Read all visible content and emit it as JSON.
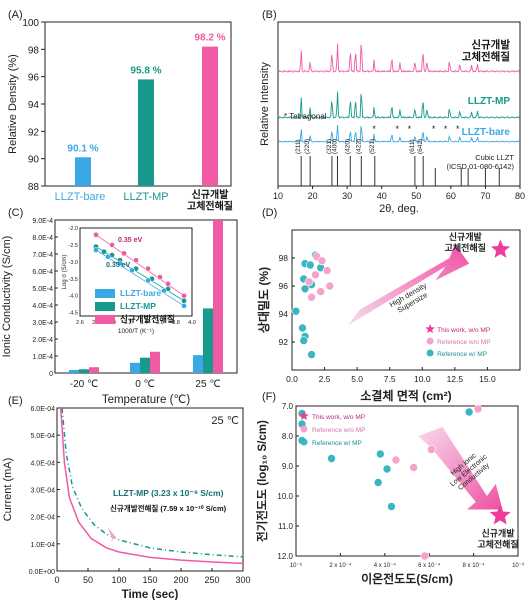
{
  "colors": {
    "bare": "#3aa8e4",
    "mp": "#17998c",
    "new": "#ef5aa5",
    "new_light": "#f4a3cc",
    "pink": "#ec3d9a",
    "axis": "#222222"
  },
  "chart_data": [
    {
      "panel": "(A)",
      "type": "bar",
      "categories": [
        "LLZT-bare",
        "LLZT-MP",
        "신규개발\n고체전해질"
      ],
      "values": [
        90.1,
        95.8,
        98.2
      ],
      "data_labels": [
        "90.1 %",
        "95.8 %",
        "98.2 %"
      ],
      "ylabel": "Relative Density (%)",
      "ylim": [
        88,
        100
      ],
      "yticks": [
        88,
        90,
        92,
        94,
        96,
        98,
        100
      ]
    },
    {
      "panel": "(B)",
      "type": "line",
      "xlabel": "2θ, deg.",
      "ylabel": "Relative Intensity",
      "xlim": [
        10,
        80
      ],
      "xticks": [
        10,
        20,
        30,
        40,
        50,
        60,
        70,
        80
      ],
      "series": [
        {
          "name": "신규개발\n고체전해질",
          "peaks": [
            [
              16.7,
              0.55
            ],
            [
              19.3,
              0.25
            ],
            [
              25.6,
              0.55
            ],
            [
              27.2,
              0.75
            ],
            [
              30.9,
              0.6
            ],
            [
              32.4,
              0.6
            ],
            [
              34.1,
              0.9
            ],
            [
              37.8,
              0.3
            ],
            [
              42.9,
              0.4
            ],
            [
              45.3,
              0.25
            ],
            [
              49.6,
              0.3
            ],
            [
              51.9,
              0.6
            ],
            [
              53.1,
              0.3
            ],
            [
              59.6,
              0.3
            ],
            [
              62.6,
              0.2
            ],
            [
              66.0,
              0.15
            ],
            [
              67.7,
              0.2
            ]
          ]
        },
        {
          "name": "LLZT-MP",
          "peaks": [
            [
              16.7,
              0.6
            ],
            [
              19.3,
              0.3
            ],
            [
              25.6,
              0.6
            ],
            [
              27.2,
              0.8
            ],
            [
              30.9,
              0.6
            ],
            [
              32.4,
              0.6
            ],
            [
              34.1,
              0.9
            ],
            [
              37.8,
              0.3
            ],
            [
              42.9,
              0.4
            ],
            [
              45.3,
              0.25
            ],
            [
              49.6,
              0.3
            ],
            [
              51.9,
              0.6
            ],
            [
              53.1,
              0.3
            ],
            [
              59.6,
              0.3
            ],
            [
              62.6,
              0.2
            ],
            [
              66.0,
              0.15
            ],
            [
              67.7,
              0.2
            ]
          ]
        },
        {
          "name": "LLZT-bare",
          "peaks": [
            [
              16.7,
              0.5
            ],
            [
              19.3,
              0.25
            ],
            [
              25.6,
              0.5
            ],
            [
              27.2,
              0.7
            ],
            [
              30.9,
              0.5
            ],
            [
              32.4,
              0.5
            ],
            [
              34.1,
              0.8
            ],
            [
              37.8,
              0.3
            ],
            [
              42.9,
              0.35
            ],
            [
              45.3,
              0.2
            ],
            [
              49.6,
              0.25
            ],
            [
              51.9,
              0.5
            ],
            [
              53.1,
              0.25
            ],
            [
              59.6,
              0.25
            ],
            [
              62.6,
              0.2
            ],
            [
              66.0,
              0.15
            ],
            [
              67.7,
              0.2
            ]
          ]
        }
      ],
      "reference": {
        "name": "Cubic LLZT\n(ICSD 01-080-6142)",
        "lines": [
          [
            16.7,
            "(211)"
          ],
          [
            19.3,
            "(220)"
          ],
          [
            25.6,
            "(321)"
          ],
          [
            27.2,
            "(400)"
          ],
          [
            30.9,
            "(420)"
          ],
          [
            34.1,
            "(422)"
          ],
          [
            38.0,
            "(521)"
          ],
          [
            49.6,
            "(611)"
          ],
          [
            52.0,
            "(642)"
          ],
          [
            55.5,
            ""
          ],
          [
            63.0,
            ""
          ],
          [
            65.0,
            ""
          ],
          [
            70.0,
            ""
          ],
          [
            74.0,
            ""
          ]
        ]
      },
      "annotation": "* Tetragonal"
    },
    {
      "panel": "(C)",
      "type": "bar",
      "categories": [
        "-20 ℃",
        "0 ℃",
        "25 ℃"
      ],
      "series": [
        {
          "name": "LLZT-bare",
          "values": [
            1.8e-05,
            6e-05,
            0.000105
          ]
        },
        {
          "name": "LLZT-MP",
          "values": [
            2.2e-05,
            9e-05,
            0.00038
          ]
        },
        {
          "name": "신규개발전해질",
          "values": [
            3.4e-05,
            0.000125,
            0.0009
          ]
        }
      ],
      "xlabel": "Temperature (℃)",
      "ylabel": "Ionic Conductivity (S/cm)",
      "ylim": [
        0,
        0.0009
      ],
      "yticks": [
        "0",
        "1.0E-4",
        "2.0E-4",
        "3.0E-4",
        "4.0E-4",
        "5.0E-4",
        "6.0E-4",
        "7.0E-4",
        "8.0E-4",
        "9.0E-4"
      ],
      "inset": {
        "type": "scatter",
        "xlabel": "1000/T (K⁻¹)",
        "ylabel": "Log σ (S/cm)",
        "xlim": [
          2.6,
          4.0
        ],
        "ylim": [
          -4.6,
          -2.0
        ],
        "xticks": [
          "2.6",
          "2.8",
          "3.0",
          "3.2",
          "3.4",
          "3.6",
          "3.8",
          "4.0"
        ],
        "yticks": [
          "-2.0",
          "-2.5",
          "-3.0",
          "-3.5",
          "-4.0",
          "-4.5"
        ],
        "annotations": [
          "0.35 eV",
          "0.35 eV"
        ],
        "series": [
          {
            "name": "신규개발전해질",
            "points": [
              [
                2.8,
                -2.2
              ],
              [
                3.0,
                -2.5
              ],
              [
                3.15,
                -2.75
              ],
              [
                3.3,
                -2.95
              ],
              [
                3.45,
                -3.2
              ],
              [
                3.6,
                -3.45
              ],
              [
                3.7,
                -3.65
              ],
              [
                3.9,
                -4.0
              ]
            ]
          },
          {
            "name": "LLZT-MP",
            "points": [
              [
                2.8,
                -2.55
              ],
              [
                2.9,
                -2.7
              ],
              [
                3.0,
                -2.8
              ],
              [
                3.1,
                -2.95
              ],
              [
                3.3,
                -3.2
              ],
              [
                3.5,
                -3.5
              ],
              [
                3.7,
                -3.8
              ],
              [
                3.9,
                -4.15
              ]
            ]
          },
          {
            "name": "LLZT-bare",
            "points": [
              [
                2.8,
                -2.65
              ],
              [
                2.95,
                -2.85
              ],
              [
                3.1,
                -3.05
              ],
              [
                3.25,
                -3.25
              ],
              [
                3.45,
                -3.55
              ],
              [
                3.65,
                -3.85
              ],
              [
                3.9,
                -4.3
              ]
            ]
          }
        ]
      }
    },
    {
      "panel": "(D)",
      "type": "scatter",
      "xlabel": "소결체 면적 (cm²)",
      "ylabel": "상대밀도 (%)",
      "xlim": [
        0,
        17.5
      ],
      "ylim": [
        90,
        100
      ],
      "xticks": [
        "0.0",
        "2.5",
        "5.0",
        "7.5",
        "10.0",
        "12.5",
        "15.0"
      ],
      "yticks": [
        "92",
        "94",
        "96",
        "98"
      ],
      "arrow_text": [
        "High density",
        "Supersize"
      ],
      "star_label": "신규개발\n고체전해질",
      "legend": [
        "This work, w/o MP",
        "Reference w/o MP",
        "Reference w/ MP"
      ],
      "this_work": [
        [
          16.0,
          98.6
        ]
      ],
      "ref_wo_mp": [
        [
          1.9,
          98.1
        ],
        [
          2.3,
          97.8
        ],
        [
          1.8,
          96.8
        ],
        [
          2.7,
          97.1
        ],
        [
          2.9,
          96.0
        ],
        [
          1.3,
          96.3
        ],
        [
          2.2,
          95.6
        ],
        [
          1.5,
          95.2
        ]
      ],
      "ref_w_mp": [
        [
          1.0,
          97.6
        ],
        [
          1.8,
          98.2
        ],
        [
          1.4,
          97.5
        ],
        [
          2.2,
          97.3
        ],
        [
          0.9,
          96.5
        ],
        [
          1.5,
          96.1
        ],
        [
          1.0,
          95.8
        ],
        [
          0.3,
          94.2
        ],
        [
          0.8,
          93.0
        ],
        [
          1.0,
          92.4
        ],
        [
          0.9,
          92.1
        ],
        [
          1.5,
          91.1
        ]
      ]
    },
    {
      "panel": "(E)",
      "type": "line",
      "xlabel": "Time (sec)",
      "ylabel": "Current (mA)",
      "xlim": [
        0,
        300
      ],
      "ylim": [
        0,
        0.0006
      ],
      "xticks": [
        "0",
        "50",
        "100",
        "150",
        "200",
        "250",
        "300"
      ],
      "yticks": [
        "0.0E+00",
        "1.0E-04",
        "2.0E-04",
        "3.0E-04",
        "4.0E-04",
        "5.0E-04",
        "6.0E-04"
      ],
      "temp_label": "25 ℃",
      "labels": [
        "LLZT-MP (3.23 x 10⁻⁹ S/cm)",
        "신규개발전해질 (7.59 x 10⁻¹⁰ S/cm)"
      ],
      "series": [
        {
          "name": "LLZT-MP",
          "points": [
            [
              8,
              0.0006
            ],
            [
              15,
              0.00043
            ],
            [
              25,
              0.00031
            ],
            [
              40,
              0.00023
            ],
            [
              60,
              0.00017
            ],
            [
              80,
              0.000135
            ],
            [
              100,
              0.000115
            ],
            [
              150,
              8.5e-05
            ],
            [
              200,
              7e-05
            ],
            [
              250,
              6e-05
            ],
            [
              300,
              5.2e-05
            ]
          ]
        },
        {
          "name": "신규개발전해질",
          "points": [
            [
              6,
              0.0006
            ],
            [
              12,
              0.0004
            ],
            [
              20,
              0.00027
            ],
            [
              35,
              0.00018
            ],
            [
              55,
              0.00012
            ],
            [
              80,
              8.5e-05
            ],
            [
              100,
              7e-05
            ],
            [
              150,
              5e-05
            ],
            [
              200,
              4e-05
            ],
            [
              250,
              3.3e-05
            ],
            [
              300,
              2.8e-05
            ]
          ]
        }
      ]
    },
    {
      "panel": "(F)",
      "type": "scatter",
      "xlabel": "이온전도도(S/cm)",
      "ylabel": "전기전도도 (log₁₀ S/cm)",
      "xlim": [
        0,
        0.001
      ],
      "ylim": [
        12,
        7
      ],
      "xticks": [
        "10⁻⁶",
        "2 x 10⁻⁴",
        "4 x 10⁻⁴",
        "6 x 10⁻⁴",
        "8 x 10⁻⁴",
        "10⁻³"
      ],
      "yticks": [
        "7.0",
        "8.0",
        "9.0",
        "10.0",
        "11.0",
        "12.0"
      ],
      "arrow_text": [
        "High ionic",
        "Low Electronic",
        "Conductivity"
      ],
      "star_label": "신규개발\n고체전해질",
      "legend": [
        "This work, w/o MP",
        "Reference w/o MP",
        "Reference w/ MP"
      ],
      "this_work": [
        [
          0.00092,
          10.65
        ]
      ],
      "ref_wo_mp": [
        [
          0.00082,
          7.1
        ],
        [
          0.00061,
          8.45
        ],
        [
          0.00045,
          8.8
        ],
        [
          0.00053,
          9.05
        ],
        [
          0.00058,
          12.0
        ]
      ],
      "ref_w_mp": [
        [
          0.00078,
          7.2
        ],
        [
          0.0,
          7.25
        ],
        [
          0.0,
          7.6
        ],
        [
          0.0,
          8.15
        ],
        [
          0.00016,
          8.75
        ],
        [
          0.00038,
          8.6
        ],
        [
          0.00041,
          9.1
        ],
        [
          0.00037,
          9.55
        ],
        [
          0.00043,
          10.35
        ]
      ]
    }
  ]
}
